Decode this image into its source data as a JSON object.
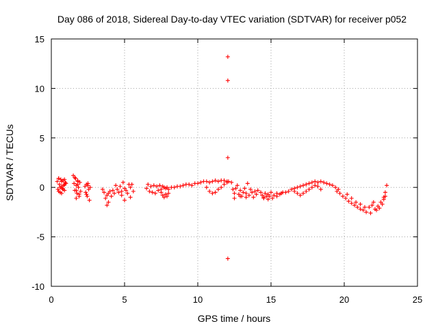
{
  "chart_data": {
    "type": "scatter",
    "title": "Day 086 of 2018, Sidereal Day-to-day VTEC variation (SDTVAR) for receiver p052",
    "xlabel": "GPS time / hours",
    "ylabel": "SDTVAR / TECUs",
    "xlim": [
      0,
      25
    ],
    "ylim": [
      -10,
      15
    ],
    "xticks": [
      0,
      5,
      10,
      15,
      20,
      25
    ],
    "yticks": [
      -10,
      -5,
      0,
      5,
      10,
      15
    ],
    "grid": true,
    "marker": "+",
    "color": "#ff0000",
    "series": [
      {
        "name": "p052",
        "x": [
          0.4,
          0.45,
          0.5,
          0.55,
          0.6,
          0.65,
          0.7,
          0.75,
          0.8,
          0.85,
          0.9,
          0.95,
          1.0,
          0.5,
          0.6,
          0.7,
          0.8,
          0.9,
          0.5,
          0.7,
          0.9,
          1.5,
          1.55,
          1.6,
          1.65,
          1.7,
          1.75,
          1.8,
          1.85,
          1.9,
          1.95,
          2.0,
          1.6,
          1.7,
          1.8,
          1.9,
          1.7,
          1.8,
          2.3,
          2.35,
          2.4,
          2.45,
          2.5,
          2.55,
          2.6,
          2.65,
          2.4,
          2.5,
          3.5,
          3.6,
          3.7,
          3.8,
          3.9,
          4.0,
          4.1,
          4.2,
          4.3,
          4.4,
          4.5,
          4.6,
          4.7,
          4.8,
          4.9,
          5.0,
          5.1,
          5.2,
          5.3,
          5.4,
          5.5,
          5.6,
          3.8,
          3.9,
          4.8,
          5.0,
          5.4,
          6.5,
          6.6,
          6.7,
          6.8,
          6.9,
          7.0,
          7.1,
          7.2,
          7.3,
          7.4,
          7.5,
          7.6,
          7.7,
          7.8,
          7.9,
          8.0,
          8.2,
          8.4,
          8.6,
          8.8,
          9.0,
          9.2,
          9.4,
          9.6,
          9.8,
          10.0,
          10.2,
          10.4,
          10.6,
          10.8,
          11.0,
          11.2,
          11.4,
          11.6,
          11.8,
          12.0,
          12.1,
          7.5,
          7.6,
          7.7,
          7.8,
          7.9,
          8.0,
          10.6,
          10.8,
          11.0,
          11.2,
          11.4,
          11.6,
          11.8,
          12.0,
          12.05,
          12.05,
          12.05,
          12.05,
          12.3,
          12.4,
          12.5,
          12.6,
          12.7,
          12.8,
          12.9,
          13.0,
          13.1,
          13.2,
          13.3,
          13.4,
          13.5,
          13.6,
          13.7,
          13.8,
          13.9,
          14.0,
          14.1,
          12.5,
          12.9,
          13.3,
          14.3,
          14.4,
          14.5,
          14.6,
          14.7,
          14.8,
          14.9,
          15.0,
          15.2,
          15.4,
          15.6,
          15.8,
          16.0,
          16.2,
          16.4,
          16.6,
          16.8,
          17.0,
          17.2,
          17.4,
          17.6,
          17.8,
          18.0,
          18.2,
          18.4,
          18.6,
          18.8,
          19.0,
          19.2,
          19.4,
          19.6,
          14.5,
          14.8,
          15.1,
          15.4,
          15.7,
          16.6,
          16.8,
          17.0,
          17.2,
          17.4,
          17.6,
          17.8,
          18.0,
          18.2,
          18.4,
          19.5,
          19.7,
          19.9,
          20.1,
          20.3,
          20.5,
          20.7,
          20.9,
          21.1,
          21.3,
          21.5,
          21.7,
          21.9,
          22.1,
          22.3,
          22.5,
          22.7,
          22.8,
          22.9,
          20.2,
          20.5,
          20.8,
          21.1,
          21.4,
          21.8,
          22.0,
          22.2,
          22.4,
          22.6,
          22.7,
          22.8
        ],
        "y": [
          0.6,
          -0.2,
          0.9,
          0.3,
          -0.5,
          0.8,
          0.1,
          -0.1,
          0.7,
          0.2,
          -0.3,
          0.5,
          0.4,
          -0.4,
          0.0,
          0.6,
          -0.2,
          0.3,
          0.9,
          -0.6,
          0.8,
          1.2,
          0.4,
          -0.3,
          0.9,
          0.2,
          -0.6,
          0.7,
          0.0,
          -0.9,
          0.5,
          -0.4,
          1.0,
          -1.1,
          0.3,
          -0.7,
          -0.3,
          0.6,
          0.1,
          -0.5,
          0.3,
          -0.9,
          0.2,
          -0.2,
          -1.3,
          0.0,
          -0.7,
          0.4,
          -0.2,
          -0.5,
          -1.1,
          -1.8,
          -1.5,
          -0.4,
          -0.9,
          -0.3,
          -0.6,
          0.2,
          -0.2,
          -0.5,
          0.1,
          -0.4,
          0.5,
          -0.1,
          -0.3,
          -0.6,
          0.3,
          0.0,
          0.3,
          -0.4,
          -0.8,
          -0.6,
          -0.8,
          -1.3,
          -1.0,
          -0.1,
          0.3,
          -0.4,
          0.1,
          -0.5,
          0.2,
          -0.6,
          0.1,
          -0.3,
          0.2,
          -0.2,
          0.1,
          0.0,
          -0.1,
          0.0,
          -0.2,
          0.0,
          0.0,
          0.1,
          0.1,
          0.2,
          0.3,
          0.3,
          0.2,
          0.4,
          0.4,
          0.5,
          0.6,
          0.6,
          0.5,
          0.6,
          0.7,
          0.6,
          0.7,
          0.7,
          0.6,
          0.6,
          -0.5,
          -0.8,
          -1.0,
          -0.7,
          -0.9,
          -0.6,
          0.0,
          -0.4,
          -0.6,
          -0.5,
          -0.2,
          0.0,
          0.3,
          0.5,
          13.2,
          10.8,
          3.0,
          -7.2,
          0.5,
          -0.2,
          -0.6,
          -0.1,
          0.2,
          -0.7,
          -0.3,
          -0.9,
          -0.5,
          -0.1,
          -0.6,
          0.4,
          -0.8,
          -0.2,
          -0.5,
          -1.0,
          -0.4,
          -0.7,
          -0.3,
          -1.1,
          -0.9,
          -1.0,
          -0.5,
          -0.8,
          -1.1,
          -0.6,
          -0.9,
          -0.7,
          -0.9,
          -0.5,
          -0.8,
          -0.6,
          -0.7,
          -0.5,
          -0.5,
          -0.4,
          -0.2,
          -0.1,
          0.0,
          0.1,
          0.2,
          0.3,
          0.4,
          0.5,
          0.6,
          0.5,
          0.6,
          0.5,
          0.4,
          0.3,
          0.2,
          0.0,
          -0.2,
          -1.0,
          -1.2,
          -1.1,
          -0.9,
          -0.6,
          -0.4,
          -0.6,
          -0.8,
          -0.6,
          -0.4,
          -0.2,
          0.0,
          0.2,
          0.1,
          -0.2,
          -0.4,
          -0.6,
          -0.9,
          -1.1,
          -1.4,
          -1.6,
          -1.8,
          -2.0,
          -2.2,
          -2.3,
          -2.5,
          -2.0,
          -1.8,
          -2.2,
          -1.9,
          -1.5,
          -1.0,
          -0.5,
          0.2,
          -0.7,
          -1.1,
          -1.5,
          -1.7,
          -2.0,
          -2.6,
          -1.5,
          -2.3,
          -2.1,
          -1.7,
          -1.2,
          -0.9
        ]
      }
    ]
  }
}
